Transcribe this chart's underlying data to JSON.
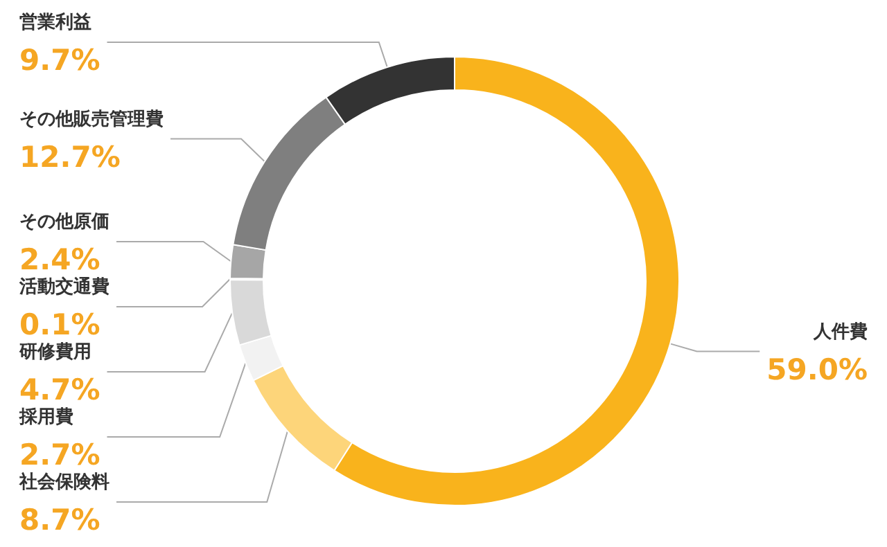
{
  "chart_data": {
    "type": "donut",
    "categories": [
      "人件費",
      "社会保険料",
      "採用費",
      "研修費用",
      "活動交通費",
      "その他原価",
      "その他販売管理費",
      "営業利益"
    ],
    "values": [
      59.0,
      8.7,
      2.7,
      4.7,
      0.1,
      2.4,
      12.7,
      9.7
    ],
    "value_labels": [
      "59.0%",
      "8.7%",
      "2.7%",
      "4.7%",
      "0.1%",
      "2.4%",
      "12.7%",
      "9.7%"
    ],
    "colors": [
      "#f9b31c",
      "#fdd57a",
      "#f2f2f2",
      "#d9d9d9",
      "#bfbfbf",
      "#a6a6a6",
      "#7f7f7f",
      "#333333"
    ],
    "legend": false
  }
}
